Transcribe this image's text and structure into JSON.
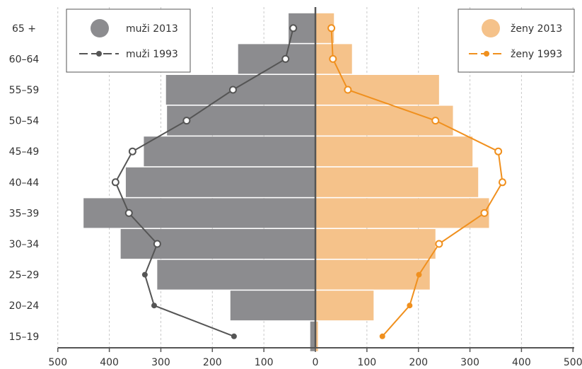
{
  "chart_data": {
    "type": "bar",
    "orientation": "horizontal",
    "subtype": "population-pyramid",
    "title": "",
    "xlabel": "",
    "ylabel": "",
    "categories": [
      "15–19",
      "20–24",
      "25–29",
      "30–34",
      "35–39",
      "40–44",
      "45–49",
      "50–54",
      "55–59",
      "60–64",
      "65 +"
    ],
    "xlim": [
      -500,
      500
    ],
    "x_ticks": [
      -500,
      -400,
      -300,
      -200,
      -100,
      0,
      100,
      200,
      300,
      400,
      500
    ],
    "x_tick_labels": [
      "500",
      "400",
      "300",
      "200",
      "100",
      "0",
      "100",
      "200",
      "300",
      "400",
      "500"
    ],
    "grid": "vertical-dashed",
    "legend_placement": "top-left and top-right",
    "series": [
      {
        "name": "muži 2013",
        "kind": "bar",
        "side": "left",
        "color": "#8c8c8f",
        "values": [
          10,
          165,
          307,
          378,
          450,
          368,
          333,
          288,
          290,
          150,
          52
        ]
      },
      {
        "name": "ženy 2013",
        "kind": "bar",
        "side": "right",
        "color": "#f5c28a",
        "values": [
          5,
          113,
          222,
          233,
          337,
          316,
          305,
          267,
          240,
          71,
          36
        ]
      },
      {
        "name": "muži 1993",
        "kind": "line",
        "side": "left",
        "color": "#555555",
        "values": [
          158,
          313,
          331,
          307,
          362,
          388,
          355,
          250,
          160,
          58,
          43
        ]
      },
      {
        "name": "ženy 1993",
        "kind": "line",
        "side": "right",
        "color": "#f0901e",
        "values": [
          130,
          183,
          201,
          240,
          328,
          363,
          355,
          233,
          63,
          34,
          31
        ]
      }
    ]
  }
}
